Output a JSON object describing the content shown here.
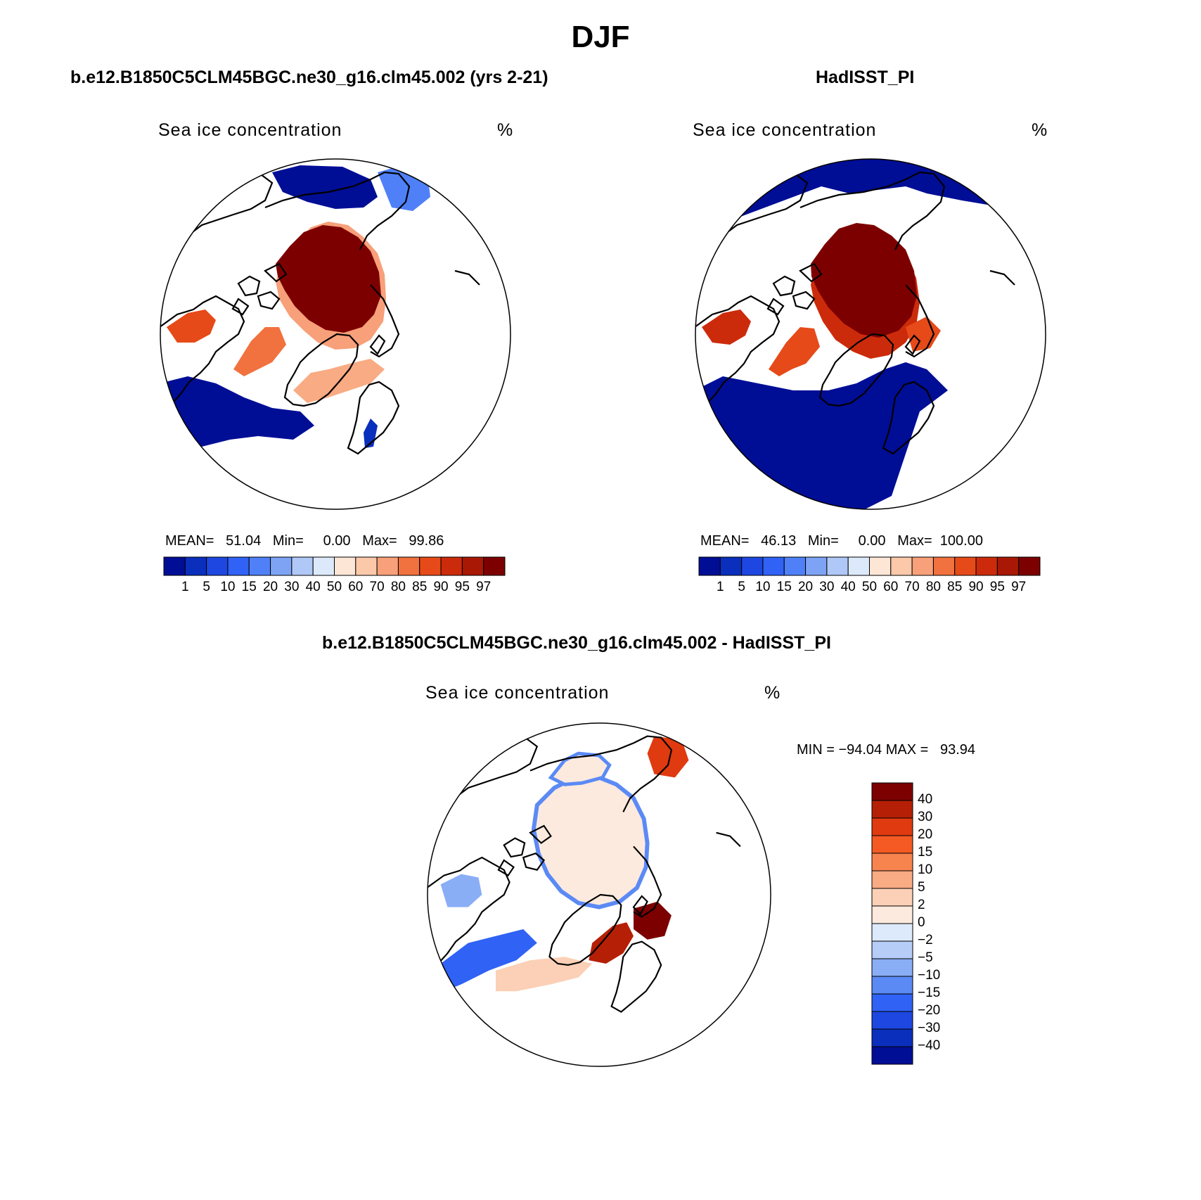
{
  "figure": {
    "title": "DJF"
  },
  "panels": [
    {
      "id": "model",
      "title": "b.e12.B1850C5CLM45BGC.ne30_g16.clm45.002 (yrs 2-21)",
      "variable_label": "Sea ice concentration",
      "units": "%",
      "stats": {
        "mean_label": "MEAN=",
        "mean": "51.04",
        "min_label": "Min=",
        "min": "0.00",
        "max_label": "Max=",
        "max": "99.86"
      }
    },
    {
      "id": "obs",
      "title": "HadISST_PI",
      "variable_label": "Sea ice concentration",
      "units": "%",
      "stats": {
        "mean_label": "MEAN=",
        "mean": "46.13",
        "min_label": "Min=",
        "min": "0.00",
        "max_label": "Max=",
        "max": "100.00"
      }
    },
    {
      "id": "diff",
      "title": "b.e12.B1850C5CLM45BGC.ne30_g16.clm45.002 - HadISST_PI",
      "variable_label": "Sea ice concentration",
      "units": "%",
      "stats_text": "MIN = −94.04 MAX =   93.94"
    }
  ],
  "chart_data": [
    {
      "type": "heatmap",
      "projection": "north-polar-stereographic",
      "title": "b.e12.B1850C5CLM45BGC.ne30_g16.clm45.002 (yrs 2-21)",
      "field": "Sea ice concentration",
      "units": "%",
      "mean": 51.04,
      "min": 0.0,
      "max": 99.86,
      "colorbar": {
        "orientation": "horizontal",
        "levels": [
          "1",
          "5",
          "10",
          "15",
          "20",
          "30",
          "40",
          "50",
          "60",
          "70",
          "80",
          "85",
          "90",
          "95",
          "97"
        ],
        "colors": [
          "#000e96",
          "#0a2fbd",
          "#1d47e0",
          "#2f62f5",
          "#4f80f7",
          "#7ea3f5",
          "#b0c8f7",
          "#dce9fb",
          "#fde6d6",
          "#fbc8aa",
          "#f7a07a",
          "#f1713f",
          "#e64a19",
          "#cc2b0b",
          "#a81805",
          "#7d0000"
        ]
      }
    },
    {
      "type": "heatmap",
      "projection": "north-polar-stereographic",
      "title": "HadISST_PI",
      "field": "Sea ice concentration",
      "units": "%",
      "mean": 46.13,
      "min": 0.0,
      "max": 100.0,
      "colorbar": {
        "orientation": "horizontal",
        "levels": [
          "1",
          "5",
          "10",
          "15",
          "20",
          "30",
          "40",
          "50",
          "60",
          "70",
          "80",
          "85",
          "90",
          "95",
          "97"
        ],
        "colors": [
          "#000e96",
          "#0a2fbd",
          "#1d47e0",
          "#2f62f5",
          "#4f80f7",
          "#7ea3f5",
          "#b0c8f7",
          "#dce9fb",
          "#fde6d6",
          "#fbc8aa",
          "#f7a07a",
          "#f1713f",
          "#e64a19",
          "#cc2b0b",
          "#a81805",
          "#7d0000"
        ]
      }
    },
    {
      "type": "heatmap",
      "projection": "north-polar-stereographic",
      "title": "b.e12.B1850C5CLM45BGC.ne30_g16.clm45.002 - HadISST_PI",
      "field": "Sea ice concentration",
      "units": "%",
      "min": -94.04,
      "max": 93.94,
      "colorbar": {
        "orientation": "vertical",
        "levels_top_to_bottom": [
          "40",
          "30",
          "20",
          "15",
          "10",
          "5",
          "2",
          "0",
          "−2",
          "−5",
          "−10",
          "−15",
          "−20",
          "−30",
          "−40"
        ],
        "colors_top_to_bottom": [
          "#7d0000",
          "#b51f06",
          "#e03a10",
          "#f55a24",
          "#f7844f",
          "#f9ab83",
          "#fbd0b6",
          "#fdeade",
          "#ddeafc",
          "#b6cdf8",
          "#8aaef6",
          "#5b8af5",
          "#2f62f5",
          "#1d47e0",
          "#0a2fbd",
          "#000e96"
        ]
      }
    }
  ]
}
